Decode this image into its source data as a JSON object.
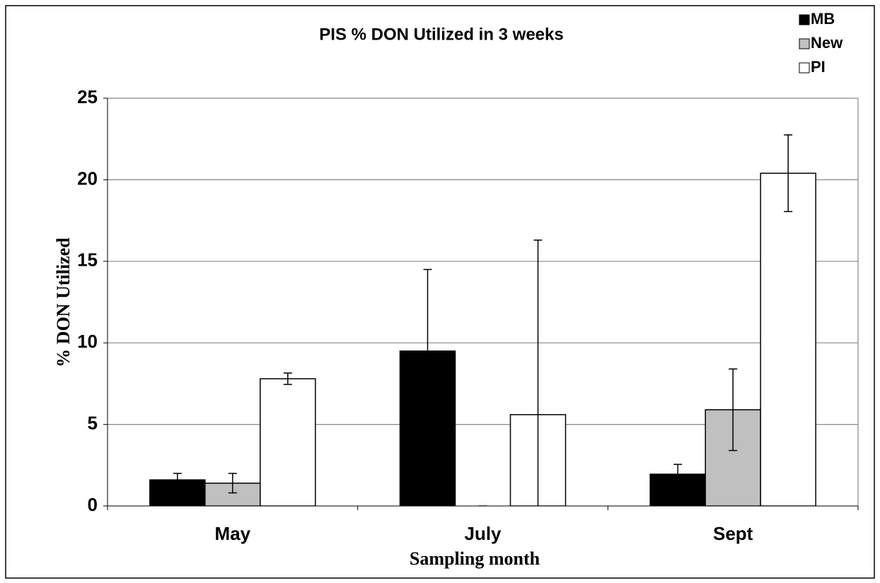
{
  "chart_data": {
    "type": "bar",
    "title": "PIS % DON Utilized in 3 weeks",
    "x_label": "Sampling month",
    "y_label": "% DON Utilized",
    "categories": [
      "May",
      "July",
      "Sept"
    ],
    "series": [
      {
        "name": "MB",
        "color": "#000000",
        "values": [
          1.6,
          9.5,
          1.95
        ],
        "errors": [
          0.4,
          5.0,
          0.6
        ]
      },
      {
        "name": "New",
        "color": "#c0c0c0",
        "values": [
          1.4,
          0,
          5.9
        ],
        "errors": [
          0.6,
          0,
          2.5
        ]
      },
      {
        "name": "PI",
        "color": "#ffffff",
        "values": [
          7.8,
          5.6,
          20.4
        ],
        "errors": [
          0.35,
          10.7,
          2.35
        ]
      }
    ],
    "ylim": [
      0,
      25
    ],
    "yticks": [
      0,
      5,
      10,
      15,
      20,
      25
    ],
    "grid": true,
    "legend": "top-right"
  }
}
